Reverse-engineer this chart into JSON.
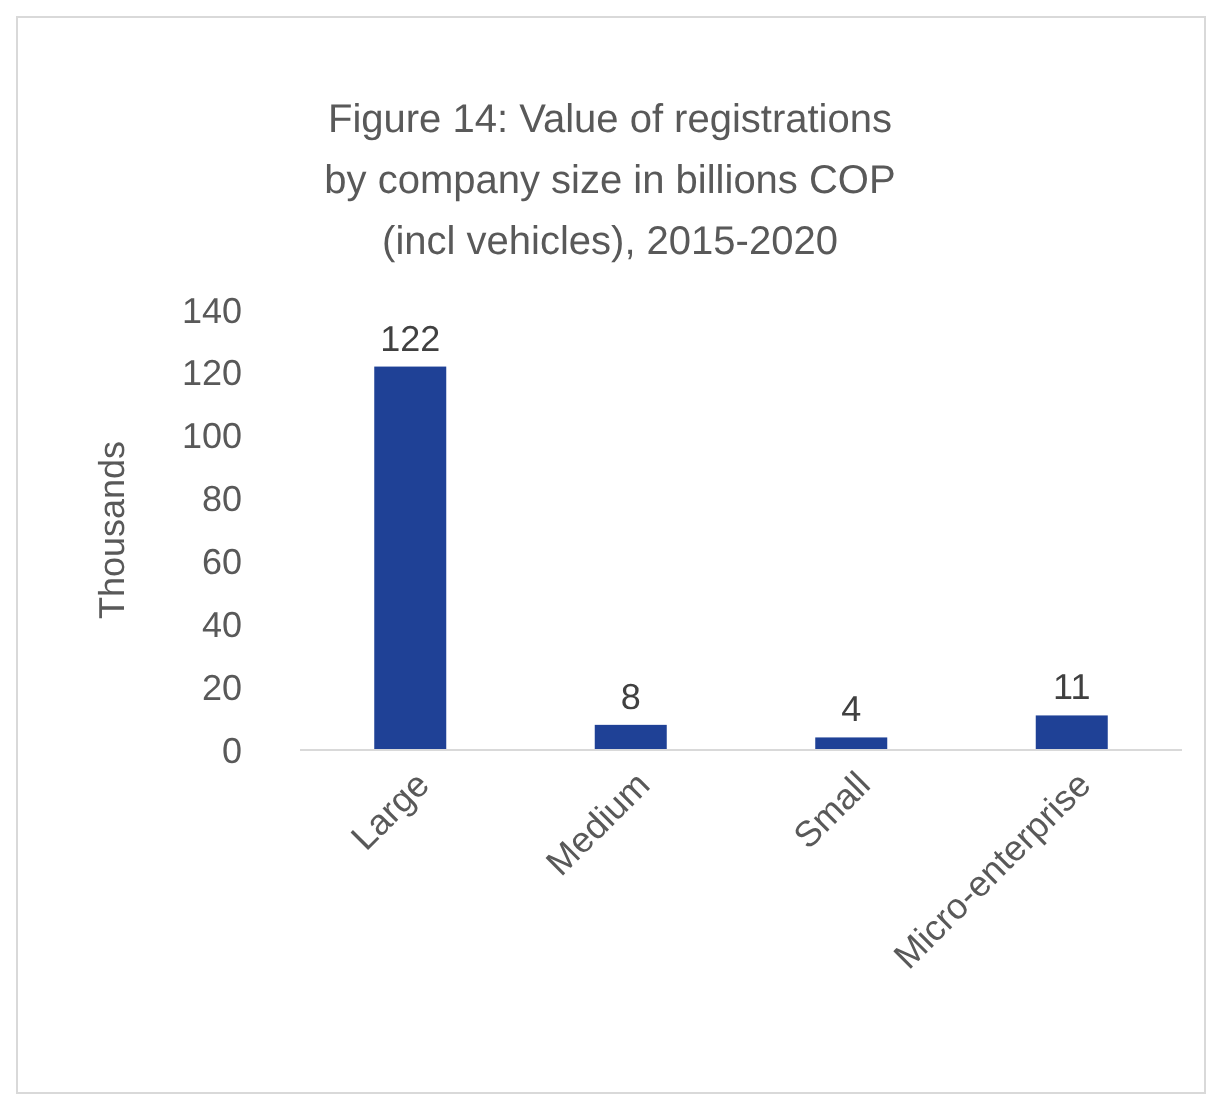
{
  "chart_data": {
    "type": "bar",
    "title": "Figure 14: Value of registrations by company size in billions COP (incl vehicles), 2015-2020",
    "ylabel": "Thousands",
    "categories": [
      "Large",
      "Medium",
      "Small",
      "Micro-enterprise"
    ],
    "values": [
      122,
      8,
      4,
      11
    ],
    "color": "#1f4196",
    "ylim": [
      0,
      140
    ],
    "yticks": [
      0,
      20,
      40,
      60,
      80,
      100,
      120,
      140
    ],
    "data_labels": true,
    "grid": false
  }
}
